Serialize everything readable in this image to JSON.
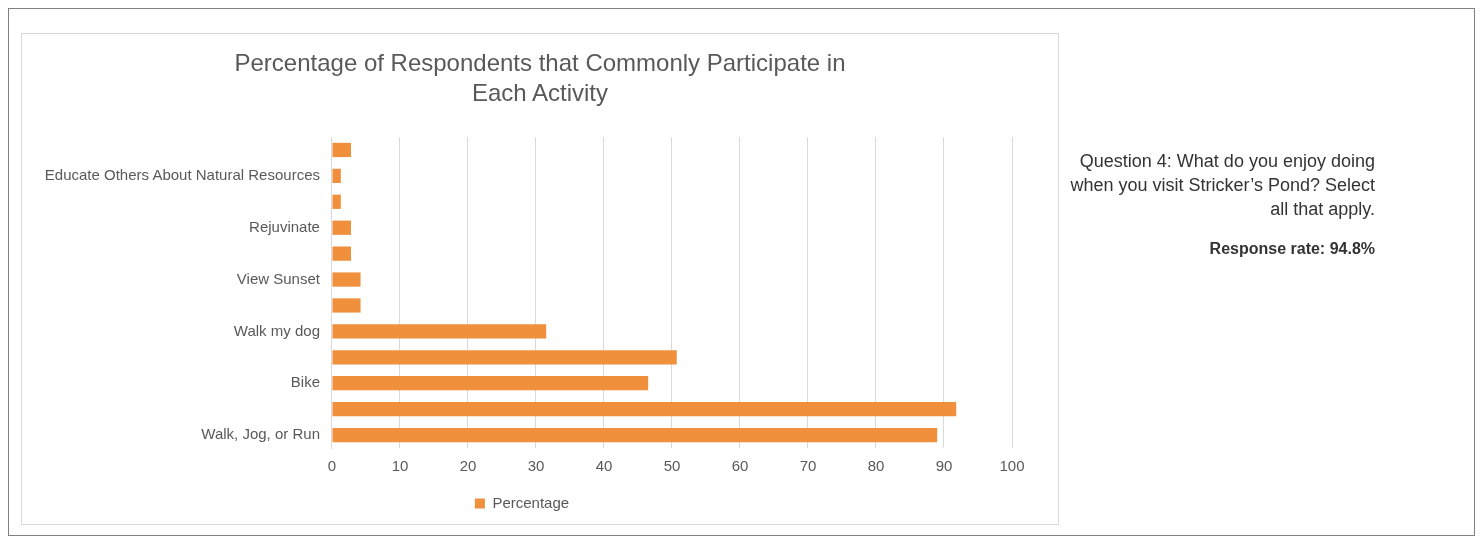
{
  "chart_data": {
    "type": "bar",
    "orientation": "horizontal",
    "title": "Percentage of Respondents that Commonly Participate in Each Activity",
    "categories": [
      null,
      "Educate Others About Natural Resources",
      null,
      "Rejuvinate",
      null,
      "View Sunset",
      null,
      "Walk my dog",
      null,
      "Bike",
      null,
      "Walk, Jog, or Run"
    ],
    "series": [
      {
        "name": "Percentage",
        "color": "#f08f3c",
        "values": [
          2.8,
          1.3,
          1.3,
          2.8,
          2.8,
          4.2,
          4.2,
          31.5,
          50.7,
          46.5,
          91.8,
          89
        ]
      }
    ],
    "xlim": [
      0,
      100
    ],
    "xticks": [
      0,
      10,
      20,
      30,
      40,
      50,
      60,
      70,
      80,
      90,
      100
    ],
    "grid": "x",
    "legend": "bottom",
    "annotations": [
      "Question 4: What do you enjoy doing when you visit Stricker’s Pond? Select all that apply.",
      "Response rate: 94.8%"
    ]
  }
}
